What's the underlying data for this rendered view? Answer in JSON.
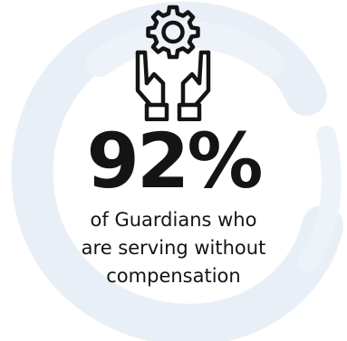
{
  "infographic": {
    "icon": "hands-holding-gear-icon",
    "value": "92%",
    "caption_lines": [
      "of Guardians who",
      "are serving without",
      "compensation"
    ]
  },
  "colors": {
    "text": "#141414",
    "icon_stroke": "#141414",
    "background_swirl": "#e9eff7",
    "background": "#ffffff"
  }
}
